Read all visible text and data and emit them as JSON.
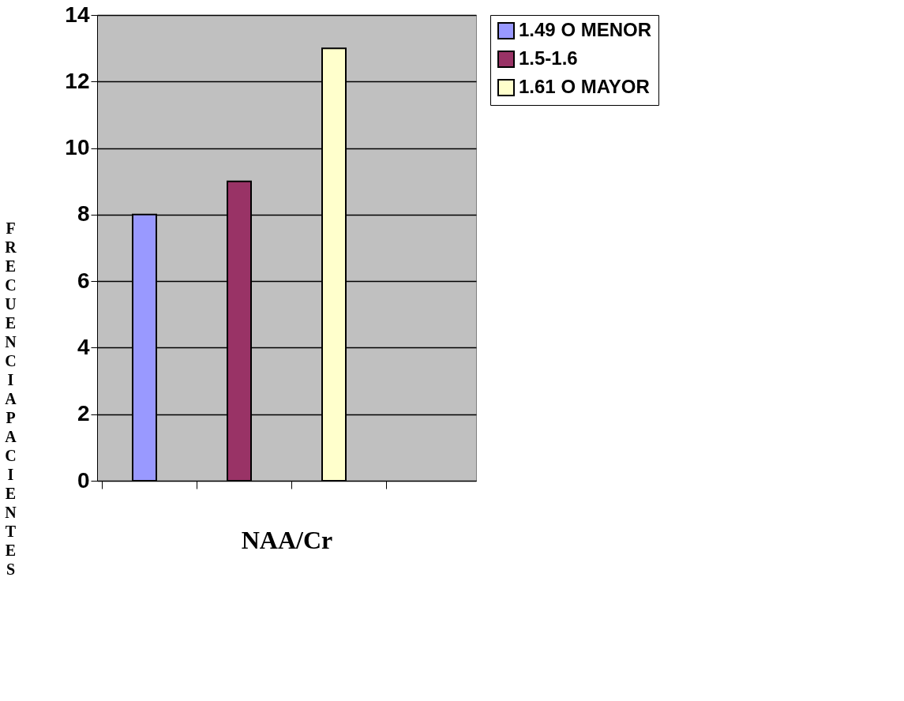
{
  "chart_data": {
    "type": "bar",
    "xlabel": "NAA/Cr",
    "ylabel": "FRECUENCIA PACIENTES",
    "categories": [
      null,
      null,
      null,
      null
    ],
    "series": [
      {
        "name": "1.49 O MENOR",
        "color": "#9999ff",
        "values": [
          8,
          null,
          null,
          null
        ]
      },
      {
        "name": "1.5-1.6",
        "color": "#993366",
        "values": [
          null,
          9,
          null,
          null
        ]
      },
      {
        "name": "1.61 O MAYOR",
        "color": "#ffffcc",
        "values": [
          null,
          null,
          13,
          null
        ]
      }
    ],
    "ylim": [
      0,
      14
    ],
    "yticks": [
      0,
      2,
      4,
      6,
      8,
      10,
      12,
      14
    ],
    "grid": "y",
    "legend": "right",
    "tick_labels": "y"
  }
}
